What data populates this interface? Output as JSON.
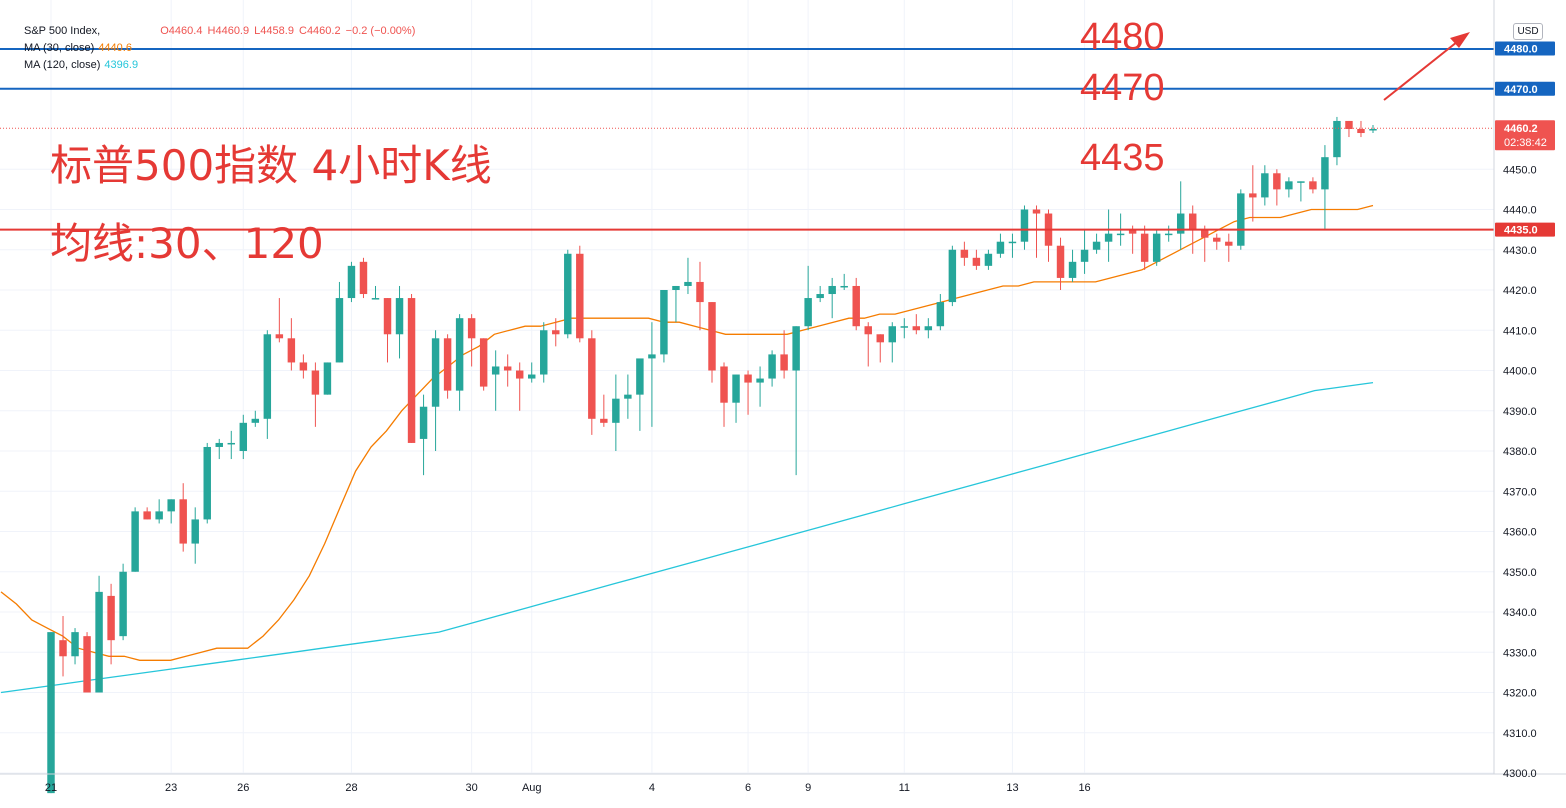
{
  "symbol": "S&P 500 Index,",
  "ohlc": {
    "open": "O4460.4",
    "high": "H4460.9",
    "low": "L4458.9",
    "close": "C4460.2",
    "change": "−0.2 (−0.00%)"
  },
  "ma30": {
    "label": "MA (30, close)",
    "value": "4440.6"
  },
  "ma120": {
    "label": "MA (120, close)",
    "value": "4396.9"
  },
  "annotations": {
    "title": "标普500指数 4小时K线",
    "subtitle": "均线:30、120",
    "level_4480": "4480",
    "level_4470": "4470",
    "level_4435": "4435"
  },
  "currency": "USD",
  "price_tags": {
    "last": "4460.2",
    "countdown": "02:38:42",
    "h4480": "4480.0",
    "h4470": "4470.0",
    "h4435": "4435.0"
  },
  "colors": {
    "up": "#26a69a",
    "down": "#ef5350",
    "ma30": "#f57c00",
    "ma120": "#26c6da",
    "hline_blue": "#1565c0",
    "hline_red": "#e53935"
  },
  "chart_data": {
    "type": "candlestick",
    "ylim": [
      4293,
      4482
    ],
    "y_ticks": [
      4300,
      4310,
      4320,
      4330,
      4340,
      4350,
      4360,
      4370,
      4380,
      4390,
      4400,
      4410,
      4420,
      4430,
      4440,
      4450
    ],
    "x_tick_labels": [
      "21",
      "23",
      "26",
      "28",
      "30",
      "Aug",
      "4",
      "6",
      "9",
      "11",
      "13",
      "16"
    ],
    "horizontal_levels": [
      4480,
      4470,
      4435
    ],
    "candles": [
      [
        4295,
        4335,
        4295,
        4335
      ],
      [
        4333,
        4339,
        4324,
        4329
      ],
      [
        4329,
        4336,
        4327,
        4335
      ],
      [
        4334,
        4335,
        4320,
        4320
      ],
      [
        4320,
        4349,
        4320,
        4345
      ],
      [
        4344,
        4347,
        4327,
        4333
      ],
      [
        4334,
        4352,
        4333,
        4350
      ],
      [
        4350,
        4366,
        4350,
        4365
      ],
      [
        4365,
        4366,
        4363,
        4363
      ],
      [
        4363,
        4368,
        4362,
        4365
      ],
      [
        4365,
        4368,
        4362,
        4368
      ],
      [
        4368,
        4372,
        4355,
        4357
      ],
      [
        4357,
        4366,
        4352,
        4363
      ],
      [
        4363,
        4382,
        4362,
        4381
      ],
      [
        4381,
        4383,
        4378,
        4382
      ],
      [
        4382,
        4385,
        4378,
        4382
      ],
      [
        4380,
        4389,
        4378,
        4387
      ],
      [
        4387,
        4390,
        4386,
        4388
      ],
      [
        4388,
        4410,
        4383,
        4409
      ],
      [
        4409,
        4418,
        4407,
        4408
      ],
      [
        4408,
        4413,
        4400,
        4402
      ],
      [
        4402,
        4404,
        4398,
        4400
      ],
      [
        4400,
        4402,
        4386,
        4394
      ],
      [
        4394,
        4402,
        4394,
        4402
      ],
      [
        4402,
        4422,
        4402,
        4418
      ],
      [
        4418,
        4427,
        4417,
        4426
      ],
      [
        4427,
        4428,
        4418,
        4419
      ],
      [
        4418,
        4421,
        4418,
        4418
      ],
      [
        4418,
        4418,
        4402,
        4409
      ],
      [
        4409,
        4421,
        4403,
        4418
      ],
      [
        4418,
        4419,
        4382,
        4382
      ],
      [
        4383,
        4394,
        4374,
        4391
      ],
      [
        4391,
        4410,
        4380,
        4408
      ],
      [
        4408,
        4409,
        4393,
        4395
      ],
      [
        4395,
        4414,
        4390,
        4413
      ],
      [
        4413,
        4414,
        4401,
        4408
      ],
      [
        4408,
        4408,
        4395,
        4396
      ],
      [
        4399,
        4405,
        4390,
        4401
      ],
      [
        4401,
        4404,
        4396,
        4400
      ],
      [
        4400,
        4402,
        4390,
        4398
      ],
      [
        4398,
        4402,
        4397,
        4399
      ],
      [
        4399,
        4412,
        4397,
        4410
      ],
      [
        4410,
        4413,
        4406,
        4409
      ],
      [
        4409,
        4430,
        4408,
        4429
      ],
      [
        4429,
        4431,
        4407,
        4408
      ],
      [
        4408,
        4410,
        4384,
        4388
      ],
      [
        4388,
        4394,
        4386,
        4387
      ],
      [
        4387,
        4399,
        4380,
        4393
      ],
      [
        4393,
        4399,
        4388,
        4394
      ],
      [
        4394,
        4402,
        4385,
        4403
      ],
      [
        4403,
        4412,
        4386,
        4404
      ],
      [
        4404,
        4420,
        4402,
        4420
      ],
      [
        4420,
        4421,
        4412,
        4421
      ],
      [
        4421,
        4428,
        4419,
        4422
      ],
      [
        4422,
        4427,
        4410,
        4417
      ],
      [
        4417,
        4417,
        4397,
        4400
      ],
      [
        4401,
        4402,
        4386,
        4392
      ],
      [
        4392,
        4399,
        4387,
        4399
      ],
      [
        4399,
        4400,
        4389,
        4397
      ],
      [
        4397,
        4401,
        4391,
        4398
      ],
      [
        4398,
        4405,
        4396,
        4404
      ],
      [
        4404,
        4410,
        4398,
        4400
      ],
      [
        4400,
        4411,
        4374,
        4411
      ],
      [
        4411,
        4426,
        4410,
        4418
      ],
      [
        4418,
        4421,
        4417,
        4419
      ],
      [
        4419,
        4423,
        4413,
        4421
      ],
      [
        4421,
        4424,
        4420,
        4421
      ],
      [
        4421,
        4423,
        4410,
        4411
      ],
      [
        4411,
        4412,
        4401,
        4409
      ],
      [
        4409,
        4409,
        4402,
        4407
      ],
      [
        4407,
        4412,
        4402,
        4411
      ],
      [
        4411,
        4413,
        4408,
        4411
      ],
      [
        4411,
        4414,
        4409,
        4410
      ],
      [
        4410,
        4413,
        4408,
        4411
      ],
      [
        4411,
        4419,
        4410,
        4417
      ],
      [
        4417,
        4431,
        4416,
        4430
      ],
      [
        4430,
        4432,
        4426,
        4428
      ],
      [
        4428,
        4430,
        4425,
        4426
      ],
      [
        4426,
        4430,
        4425,
        4429
      ],
      [
        4429,
        4434,
        4428,
        4432
      ],
      [
        4432,
        4434,
        4428,
        4432
      ],
      [
        4432,
        4441,
        4430,
        4440
      ],
      [
        4440,
        4441,
        4428,
        4439
      ],
      [
        4439,
        4440,
        4427,
        4431
      ],
      [
        4431,
        4433,
        4420,
        4423
      ],
      [
        4423,
        4430,
        4422,
        4427
      ],
      [
        4427,
        4435,
        4424,
        4430
      ],
      [
        4430,
        4434,
        4429,
        4432
      ],
      [
        4432,
        4440,
        4427,
        4434
      ],
      [
        4434,
        4439,
        4431,
        4434
      ],
      [
        4435,
        4436,
        4429,
        4434
      ],
      [
        4434,
        4436,
        4425,
        4427
      ],
      [
        4427,
        4435,
        4426,
        4434
      ],
      [
        4434,
        4436,
        4432,
        4434
      ],
      [
        4434,
        4447,
        4430,
        4439
      ],
      [
        4439,
        4441,
        4429,
        4435
      ],
      [
        4435,
        4436,
        4427,
        4433
      ],
      [
        4433,
        4434,
        4430,
        4432
      ],
      [
        4432,
        4434,
        4427,
        4431
      ],
      [
        4431,
        4445,
        4430,
        4444
      ],
      [
        4444,
        4451,
        4437,
        4443
      ],
      [
        4443,
        4451,
        4441,
        4449
      ],
      [
        4449,
        4450,
        4441,
        4445
      ],
      [
        4445,
        4448,
        4443,
        4447
      ],
      [
        4447,
        4447,
        4442,
        4447
      ],
      [
        4447,
        4448,
        4444,
        4445
      ],
      [
        4445,
        4456,
        4435,
        4453
      ],
      [
        4453,
        4463,
        4451,
        4462
      ],
      [
        4462,
        4462,
        4458,
        4460
      ],
      [
        4460,
        4462,
        4458,
        4459
      ],
      [
        4460,
        4461,
        4459,
        4460
      ]
    ],
    "ma30": [
      4345,
      4342,
      4338,
      4336,
      4334,
      4331,
      4330,
      4329,
      4329,
      4328,
      4328,
      4328,
      4329,
      4330,
      4331,
      4331,
      4331,
      4334,
      4338,
      4343,
      4349,
      4357,
      4366,
      4375,
      4381,
      4385,
      4390,
      4394,
      4398,
      4401,
      4404,
      4406,
      4409,
      4410,
      4411,
      4411,
      4412,
      4413,
      4413,
      4413,
      4413,
      4413,
      4413,
      4412,
      4412,
      4411,
      4410,
      4409,
      4409,
      4409,
      4409,
      4409,
      4410,
      4411,
      4412,
      4413,
      4413,
      4414,
      4414,
      4415,
      4416,
      4417,
      4418,
      4419,
      4420,
      4421,
      4421,
      4422,
      4422,
      4422,
      4422,
      4422,
      4423,
      4424,
      4425,
      4427,
      4429,
      4431,
      4433,
      4435,
      4437,
      4438,
      4438,
      4438,
      4439,
      4440,
      4440,
      4440,
      4440,
      4441
    ],
    "ma120": [
      4320,
      4321,
      4322,
      4323,
      4324,
      4325,
      4326,
      4327,
      4328,
      4329,
      4330,
      4331,
      4332,
      4333,
      4334,
      4335,
      4337,
      4339,
      4341,
      4343,
      4345,
      4347,
      4349,
      4351,
      4353,
      4355,
      4357,
      4359,
      4361,
      4363,
      4365,
      4367,
      4369,
      4371,
      4373,
      4375,
      4377,
      4379,
      4381,
      4383,
      4385,
      4387,
      4389,
      4391,
      4393,
      4395,
      4396,
      4397
    ]
  }
}
